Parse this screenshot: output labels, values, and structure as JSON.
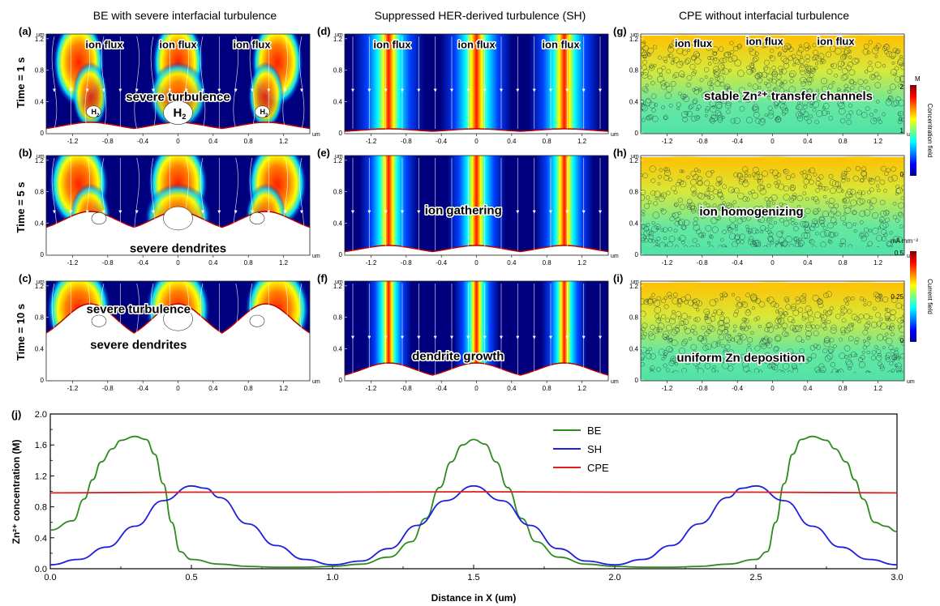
{
  "column_titles": [
    "BE with severe interfacial turbulence",
    "Suppressed HER-derived turbulence (SH)",
    "CPE without interfacial turbulence"
  ],
  "row_labels": [
    "Time = 1 s",
    "Time = 5 s",
    "Time = 10 s"
  ],
  "axis_unit": "um",
  "axis": {
    "x_ticks": [
      "-1.2",
      "-0.8",
      "-0.4",
      "0",
      "0.4",
      "0.8",
      "1.2"
    ],
    "y_ticks": [
      "0",
      "0.4",
      "0.8",
      "1.2"
    ]
  },
  "h2_label": "H",
  "h2_sub": "2",
  "panels": [
    {
      "letter": "(a)",
      "style": "be",
      "stage": 0,
      "labels": [
        "ion flux",
        "ion flux",
        "ion flux",
        "severe turbulence"
      ]
    },
    {
      "letter": "(b)",
      "style": "be",
      "stage": 1,
      "labels": [
        "severe dendrites"
      ]
    },
    {
      "letter": "(c)",
      "style": "be",
      "stage": 2,
      "labels": [
        "severe turbulence",
        "severe dendrites"
      ]
    },
    {
      "letter": "(d)",
      "style": "sh",
      "stage": 0,
      "labels": [
        "ion flux",
        "ion flux",
        "ion flux"
      ]
    },
    {
      "letter": "(e)",
      "style": "sh",
      "stage": 1,
      "labels": [
        "ion gathering"
      ]
    },
    {
      "letter": "(f)",
      "style": "sh",
      "stage": 2,
      "labels": [
        "dendrite growth"
      ]
    },
    {
      "letter": "(g)",
      "style": "cpe",
      "stage": 0,
      "labels": [
        "ion flux",
        "ion flux",
        "ion flux",
        "stable Zn²⁺ transfer channels"
      ]
    },
    {
      "letter": "(h)",
      "style": "cpe",
      "stage": 1,
      "labels": [
        "ion homogenizing"
      ]
    },
    {
      "letter": "(i)",
      "style": "cpe",
      "stage": 2,
      "labels": [
        "uniform Zn deposition"
      ]
    }
  ],
  "colorbars": [
    {
      "unit": "M",
      "title": "Concentration field",
      "ticks": [
        "2",
        "1",
        "0"
      ]
    },
    {
      "unit": "mA mm⁻²",
      "title": "Current field",
      "ticks": [
        "0.5",
        "0.25",
        "0"
      ]
    }
  ],
  "chart_data": {
    "type": "line",
    "panel_letter": "(j)",
    "xlabel": "Distance in X (um)",
    "ylabel": "Zn²⁺ concentration (M)",
    "xlim": [
      0,
      3.0
    ],
    "ylim": [
      0,
      2.0
    ],
    "x_ticks": [
      0.0,
      0.5,
      1.0,
      1.5,
      2.0,
      2.5,
      3.0
    ],
    "y_ticks": [
      0.0,
      0.4,
      0.8,
      1.2,
      1.6,
      2.0
    ],
    "legend_position": "top-center",
    "series": [
      {
        "name": "BE",
        "color": "#2e8b1f",
        "points": [
          [
            0,
            0.5
          ],
          [
            0.08,
            0.62
          ],
          [
            0.12,
            0.9
          ],
          [
            0.15,
            1.15
          ],
          [
            0.18,
            1.38
          ],
          [
            0.22,
            1.55
          ],
          [
            0.25,
            1.66
          ],
          [
            0.3,
            1.71
          ],
          [
            0.34,
            1.67
          ],
          [
            0.37,
            1.48
          ],
          [
            0.4,
            1.1
          ],
          [
            0.43,
            0.6
          ],
          [
            0.46,
            0.22
          ],
          [
            0.5,
            0.12
          ],
          [
            0.6,
            0.06
          ],
          [
            0.7,
            0.03
          ],
          [
            0.8,
            0.02
          ],
          [
            0.9,
            0.02
          ],
          [
            1.0,
            0.03
          ],
          [
            1.1,
            0.06
          ],
          [
            1.2,
            0.15
          ],
          [
            1.28,
            0.35
          ],
          [
            1.33,
            0.65
          ],
          [
            1.38,
            1.05
          ],
          [
            1.42,
            1.38
          ],
          [
            1.46,
            1.6
          ],
          [
            1.5,
            1.67
          ],
          [
            1.54,
            1.61
          ],
          [
            1.58,
            1.38
          ],
          [
            1.62,
            1.05
          ],
          [
            1.67,
            0.65
          ],
          [
            1.72,
            0.35
          ],
          [
            1.8,
            0.15
          ],
          [
            1.9,
            0.06
          ],
          [
            2.0,
            0.03
          ],
          [
            2.1,
            0.02
          ],
          [
            2.2,
            0.02
          ],
          [
            2.3,
            0.03
          ],
          [
            2.4,
            0.06
          ],
          [
            2.5,
            0.12
          ],
          [
            2.54,
            0.22
          ],
          [
            2.57,
            0.6
          ],
          [
            2.6,
            1.1
          ],
          [
            2.63,
            1.48
          ],
          [
            2.66,
            1.67
          ],
          [
            2.7,
            1.71
          ],
          [
            2.75,
            1.66
          ],
          [
            2.78,
            1.55
          ],
          [
            2.82,
            1.38
          ],
          [
            2.85,
            1.15
          ],
          [
            2.88,
            0.9
          ],
          [
            2.92,
            0.6
          ],
          [
            2.96,
            0.55
          ],
          [
            3.0,
            0.48
          ]
        ]
      },
      {
        "name": "SH",
        "color": "#1f1fe0",
        "points": [
          [
            0,
            0.05
          ],
          [
            0.1,
            0.12
          ],
          [
            0.2,
            0.28
          ],
          [
            0.3,
            0.55
          ],
          [
            0.4,
            0.88
          ],
          [
            0.5,
            1.07
          ],
          [
            0.55,
            1.04
          ],
          [
            0.6,
            0.92
          ],
          [
            0.7,
            0.58
          ],
          [
            0.8,
            0.3
          ],
          [
            0.9,
            0.12
          ],
          [
            1.0,
            0.05
          ],
          [
            1.1,
            0.1
          ],
          [
            1.2,
            0.26
          ],
          [
            1.3,
            0.56
          ],
          [
            1.4,
            0.88
          ],
          [
            1.5,
            1.07
          ],
          [
            1.6,
            0.88
          ],
          [
            1.7,
            0.56
          ],
          [
            1.8,
            0.26
          ],
          [
            1.9,
            0.1
          ],
          [
            2.0,
            0.05
          ],
          [
            2.1,
            0.12
          ],
          [
            2.2,
            0.3
          ],
          [
            2.3,
            0.58
          ],
          [
            2.4,
            0.92
          ],
          [
            2.45,
            1.04
          ],
          [
            2.5,
            1.07
          ],
          [
            2.6,
            0.88
          ],
          [
            2.7,
            0.55
          ],
          [
            2.8,
            0.28
          ],
          [
            2.9,
            0.12
          ],
          [
            3.0,
            0.05
          ]
        ]
      },
      {
        "name": "CPE",
        "color": "#e01f1f",
        "points": [
          [
            0,
            0.98
          ],
          [
            0.5,
            0.99
          ],
          [
            1.0,
            0.99
          ],
          [
            1.5,
            0.995
          ],
          [
            2.0,
            0.99
          ],
          [
            2.5,
            0.99
          ],
          [
            3.0,
            0.98
          ]
        ]
      }
    ]
  }
}
